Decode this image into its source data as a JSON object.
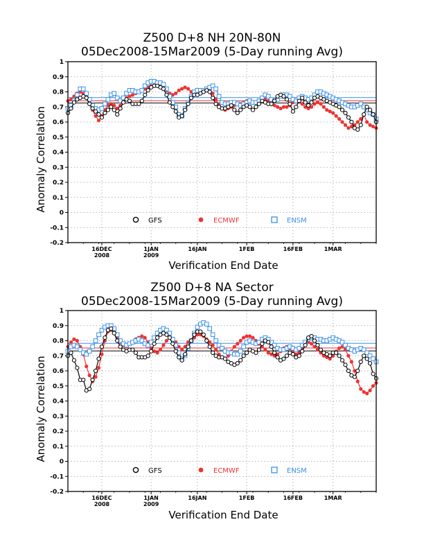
{
  "chart_data": [
    {
      "type": "line",
      "title_line1": "Z500 D+8 NH 20N-80N",
      "title_line2": "05Dec2008-15Mar2009 (5-Day running Avg)",
      "xlabel": "Verification End Date",
      "ylabel": "Anomaly Correlation",
      "ylim": [
        -0.2,
        1.0
      ],
      "yticks": [
        "1",
        "0.9",
        "0.8",
        "0.7",
        "0.6",
        "0.5",
        "0.4",
        "0.3",
        "0.2",
        "0.1",
        "0",
        "-0.1",
        "-0.2"
      ],
      "x_start": "05Dec2008",
      "x_end": "15Mar2009",
      "xticks": [
        {
          "day": 11,
          "label": "16DEC",
          "year": "2008"
        },
        {
          "day": 27,
          "label": "1JAN",
          "year": "2009"
        },
        {
          "day": 42,
          "label": "16JAN",
          "year": ""
        },
        {
          "day": 58,
          "label": "1FEB",
          "year": ""
        },
        {
          "day": 73,
          "label": "16FEB",
          "year": ""
        },
        {
          "day": 86,
          "label": "1MAR",
          "year": ""
        }
      ],
      "grid": true,
      "legend_position": "bottom-inside",
      "series": [
        {
          "name": "GFS",
          "color": "#000000",
          "marker": "circle-open",
          "mean": 0.726,
          "values": [
            0.66,
            0.69,
            0.73,
            0.75,
            0.76,
            0.77,
            0.76,
            0.72,
            0.69,
            0.67,
            0.65,
            0.63,
            0.66,
            0.68,
            0.7,
            0.68,
            0.65,
            0.69,
            0.73,
            0.75,
            0.74,
            0.72,
            0.72,
            0.72,
            0.74,
            0.78,
            0.81,
            0.83,
            0.84,
            0.84,
            0.83,
            0.82,
            0.78,
            0.73,
            0.7,
            0.67,
            0.63,
            0.64,
            0.68,
            0.72,
            0.76,
            0.78,
            0.78,
            0.79,
            0.8,
            0.81,
            0.8,
            0.76,
            0.72,
            0.7,
            0.69,
            0.69,
            0.7,
            0.71,
            0.68,
            0.66,
            0.68,
            0.7,
            0.71,
            0.7,
            0.68,
            0.7,
            0.72,
            0.74,
            0.73,
            0.72,
            0.72,
            0.74,
            0.77,
            0.78,
            0.77,
            0.75,
            0.72,
            0.67,
            0.7,
            0.74,
            0.76,
            0.73,
            0.71,
            0.73,
            0.76,
            0.77,
            0.76,
            0.75,
            0.74,
            0.73,
            0.72,
            0.71,
            0.7,
            0.68,
            0.66,
            0.63,
            0.6,
            0.56,
            0.55,
            0.58,
            0.65,
            0.7,
            0.68,
            0.65,
            0.6
          ]
        },
        {
          "name": "ECMWF",
          "color": "#ee3333",
          "marker": "circle-filled",
          "mean": 0.741,
          "values": [
            0.74,
            0.75,
            0.77,
            0.79,
            0.8,
            0.79,
            0.77,
            0.73,
            0.68,
            0.64,
            0.61,
            0.64,
            0.68,
            0.71,
            0.72,
            0.71,
            0.69,
            0.71,
            0.74,
            0.76,
            0.77,
            0.78,
            0.79,
            0.8,
            0.81,
            0.82,
            0.83,
            0.84,
            0.84,
            0.84,
            0.84,
            0.83,
            0.81,
            0.79,
            0.78,
            0.79,
            0.81,
            0.82,
            0.83,
            0.82,
            0.8,
            0.79,
            0.78,
            0.79,
            0.8,
            0.81,
            0.81,
            0.79,
            0.75,
            0.71,
            0.69,
            0.68,
            0.69,
            0.7,
            0.71,
            0.72,
            0.72,
            0.73,
            0.74,
            0.74,
            0.73,
            0.73,
            0.74,
            0.75,
            0.75,
            0.74,
            0.73,
            0.71,
            0.7,
            0.69,
            0.7,
            0.7,
            0.71,
            0.73,
            0.74,
            0.74,
            0.72,
            0.7,
            0.69,
            0.7,
            0.72,
            0.73,
            0.72,
            0.7,
            0.68,
            0.67,
            0.66,
            0.64,
            0.62,
            0.6,
            0.58,
            0.56,
            0.57,
            0.58,
            0.6,
            0.62,
            0.65,
            0.6,
            0.58,
            0.57,
            0.56
          ]
        },
        {
          "name": "ENSM",
          "color": "#3a8fe8",
          "marker": "square-open",
          "mean": 0.762,
          "values": [
            0.69,
            0.71,
            0.74,
            0.78,
            0.82,
            0.82,
            0.79,
            0.75,
            0.71,
            0.69,
            0.68,
            0.69,
            0.72,
            0.75,
            0.78,
            0.79,
            0.76,
            0.74,
            0.76,
            0.79,
            0.81,
            0.81,
            0.8,
            0.8,
            0.81,
            0.84,
            0.86,
            0.87,
            0.87,
            0.86,
            0.86,
            0.85,
            0.82,
            0.77,
            0.73,
            0.7,
            0.65,
            0.64,
            0.69,
            0.73,
            0.77,
            0.8,
            0.81,
            0.81,
            0.81,
            0.82,
            0.83,
            0.84,
            0.82,
            0.77,
            0.73,
            0.72,
            0.72,
            0.73,
            0.73,
            0.72,
            0.71,
            0.72,
            0.73,
            0.74,
            0.73,
            0.73,
            0.74,
            0.76,
            0.78,
            0.77,
            0.75,
            0.74,
            0.75,
            0.77,
            0.78,
            0.78,
            0.77,
            0.75,
            0.74,
            0.76,
            0.77,
            0.76,
            0.75,
            0.76,
            0.78,
            0.8,
            0.8,
            0.79,
            0.78,
            0.77,
            0.76,
            0.75,
            0.74,
            0.73,
            0.72,
            0.71,
            0.7,
            0.7,
            0.71,
            0.72,
            0.7,
            0.68,
            0.66,
            0.65,
            0.62
          ]
        }
      ]
    },
    {
      "type": "line",
      "title_line1": "Z500 D+8 NA Sector",
      "title_line2": "05Dec2008-15Mar2009 (5-Day running Avg)",
      "xlabel": "Verification End Date",
      "ylabel": "Anomaly Correlation",
      "ylim": [
        -0.2,
        1.0
      ],
      "yticks": [
        "1",
        "0.9",
        "0.8",
        "0.7",
        "0.6",
        "0.5",
        "0.4",
        "0.3",
        "0.2",
        "0.1",
        "0",
        "-0.1",
        "-0.2"
      ],
      "x_start": "05Dec2008",
      "x_end": "15Mar2009",
      "xticks": [
        {
          "day": 11,
          "label": "16DEC",
          "year": "2008"
        },
        {
          "day": 27,
          "label": "1JAN",
          "year": "2009"
        },
        {
          "day": 42,
          "label": "16JAN",
          "year": ""
        },
        {
          "day": 58,
          "label": "1FEB",
          "year": ""
        },
        {
          "day": 73,
          "label": "16FEB",
          "year": ""
        },
        {
          "day": 86,
          "label": "1MAR",
          "year": ""
        }
      ],
      "grid": true,
      "legend_position": "bottom-inside",
      "series": [
        {
          "name": "GFS",
          "color": "#000000",
          "marker": "circle-open",
          "mean": 0.732,
          "values": [
            0.7,
            0.72,
            0.67,
            0.62,
            0.54,
            0.54,
            0.47,
            0.48,
            0.54,
            0.6,
            0.68,
            0.76,
            0.82,
            0.87,
            0.88,
            0.85,
            0.8,
            0.76,
            0.74,
            0.73,
            0.74,
            0.74,
            0.72,
            0.69,
            0.69,
            0.69,
            0.7,
            0.73,
            0.78,
            0.82,
            0.84,
            0.85,
            0.84,
            0.82,
            0.78,
            0.73,
            0.69,
            0.67,
            0.71,
            0.76,
            0.8,
            0.84,
            0.86,
            0.86,
            0.84,
            0.8,
            0.76,
            0.72,
            0.7,
            0.69,
            0.69,
            0.68,
            0.66,
            0.65,
            0.64,
            0.65,
            0.67,
            0.7,
            0.72,
            0.74,
            0.73,
            0.72,
            0.74,
            0.78,
            0.8,
            0.79,
            0.76,
            0.72,
            0.69,
            0.67,
            0.68,
            0.7,
            0.72,
            0.71,
            0.69,
            0.7,
            0.73,
            0.77,
            0.82,
            0.83,
            0.8,
            0.77,
            0.74,
            0.72,
            0.71,
            0.7,
            0.72,
            0.72,
            0.7,
            0.67,
            0.64,
            0.6,
            0.57,
            0.56,
            0.6,
            0.66,
            0.7,
            0.68,
            0.65,
            0.58,
            0.55
          ]
        },
        {
          "name": "ECMWF",
          "color": "#ee3333",
          "marker": "circle-filled",
          "mean": 0.752,
          "values": [
            0.76,
            0.79,
            0.81,
            0.8,
            0.76,
            0.71,
            0.63,
            0.57,
            0.53,
            0.56,
            0.62,
            0.71,
            0.8,
            0.86,
            0.87,
            0.86,
            0.82,
            0.79,
            0.77,
            0.76,
            0.78,
            0.79,
            0.81,
            0.82,
            0.83,
            0.82,
            0.79,
            0.75,
            0.73,
            0.72,
            0.74,
            0.77,
            0.8,
            0.82,
            0.81,
            0.79,
            0.76,
            0.74,
            0.76,
            0.79,
            0.8,
            0.82,
            0.84,
            0.84,
            0.83,
            0.81,
            0.79,
            0.77,
            0.74,
            0.71,
            0.69,
            0.68,
            0.7,
            0.73,
            0.76,
            0.78,
            0.8,
            0.82,
            0.83,
            0.83,
            0.82,
            0.8,
            0.78,
            0.76,
            0.74,
            0.72,
            0.71,
            0.7,
            0.71,
            0.73,
            0.75,
            0.76,
            0.75,
            0.73,
            0.71,
            0.72,
            0.75,
            0.78,
            0.79,
            0.78,
            0.76,
            0.74,
            0.72,
            0.7,
            0.69,
            0.68,
            0.7,
            0.73,
            0.75,
            0.76,
            0.74,
            0.7,
            0.66,
            0.6,
            0.53,
            0.48,
            0.46,
            0.45,
            0.47,
            0.5,
            0.52
          ]
        },
        {
          "name": "ENSM",
          "color": "#3a8fe8",
          "marker": "square-open",
          "mean": 0.783,
          "values": [
            0.73,
            0.76,
            0.77,
            0.76,
            0.74,
            0.72,
            0.71,
            0.73,
            0.76,
            0.8,
            0.84,
            0.87,
            0.89,
            0.9,
            0.9,
            0.88,
            0.84,
            0.8,
            0.78,
            0.77,
            0.78,
            0.79,
            0.8,
            0.81,
            0.8,
            0.78,
            0.77,
            0.79,
            0.82,
            0.85,
            0.87,
            0.88,
            0.87,
            0.85,
            0.81,
            0.77,
            0.72,
            0.68,
            0.7,
            0.75,
            0.8,
            0.85,
            0.89,
            0.91,
            0.92,
            0.91,
            0.88,
            0.84,
            0.8,
            0.77,
            0.75,
            0.73,
            0.72,
            0.72,
            0.71,
            0.71,
            0.73,
            0.76,
            0.79,
            0.8,
            0.79,
            0.78,
            0.79,
            0.81,
            0.82,
            0.81,
            0.79,
            0.77,
            0.75,
            0.74,
            0.74,
            0.75,
            0.76,
            0.75,
            0.74,
            0.75,
            0.77,
            0.79,
            0.81,
            0.82,
            0.82,
            0.81,
            0.81,
            0.8,
            0.8,
            0.81,
            0.82,
            0.81,
            0.8,
            0.79,
            0.77,
            0.75,
            0.74,
            0.73,
            0.74,
            0.75,
            0.74,
            0.72,
            0.7,
            0.68,
            0.66
          ]
        }
      ]
    }
  ]
}
